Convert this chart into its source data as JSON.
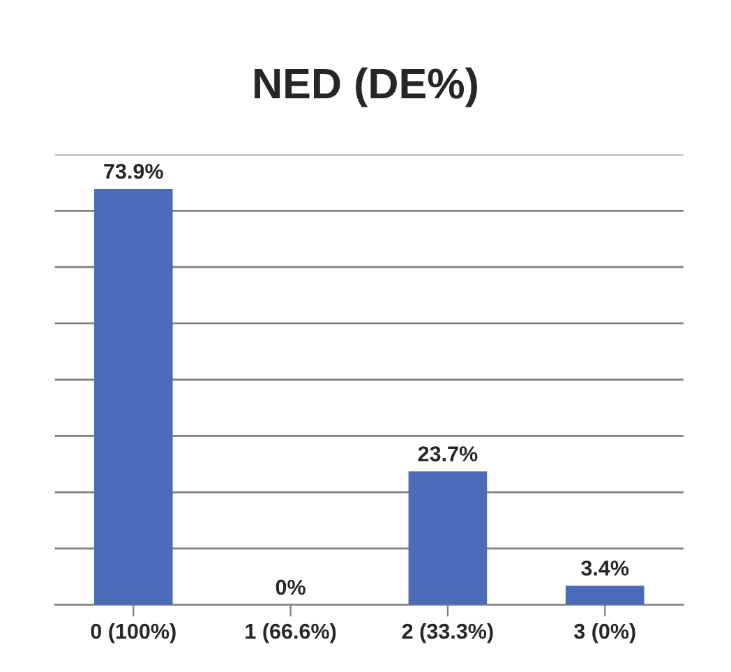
{
  "chart_data": {
    "type": "bar",
    "title": "NED (DE%)",
    "categories": [
      "0 (100%)",
      "1 (66.6%)",
      "2 (33.3%)",
      "3 (0%)"
    ],
    "values": [
      73.9,
      0,
      23.7,
      3.4
    ],
    "value_labels": [
      "73.9%",
      "0%",
      "23.7%",
      "3.4%"
    ],
    "color": "#4a6cb8",
    "ylim": [
      0,
      80
    ],
    "yticks": [
      {
        "value": 0,
        "label": null
      },
      {
        "value": 10,
        "label": null
      },
      {
        "value": 20,
        "label": null
      },
      {
        "value": 30,
        "label": null
      },
      {
        "value": 40,
        "label": null
      },
      {
        "value": 50,
        "label": null
      },
      {
        "value": 60,
        "label": null
      },
      {
        "value": 70,
        "label": null
      },
      {
        "value": 80,
        "label": null
      }
    ],
    "grid": "y",
    "tick_labels": "x"
  }
}
